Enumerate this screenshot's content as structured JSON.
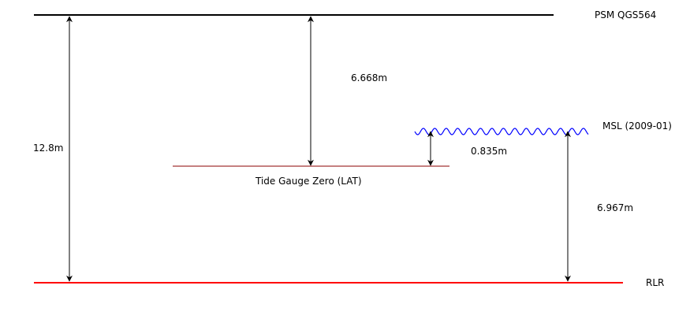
{
  "levels": {
    "psm": "PSM QGS564",
    "msl": "MSL (2009-01)",
    "tide_gauge_zero": "Tide Gauge Zero (LAT)",
    "rlr": "RLR"
  },
  "measurements": {
    "psm_to_rlr": "12.8m",
    "psm_to_tgz": "6.668m",
    "tgz_to_msl": "0.835m",
    "msl_to_rlr": "6.967m"
  },
  "colors": {
    "psm_line": "#000000",
    "msl_wave": "#0000ff",
    "tgz_line": "#8b0000",
    "rlr_line": "#ff0000",
    "arrows": "#000000"
  }
}
